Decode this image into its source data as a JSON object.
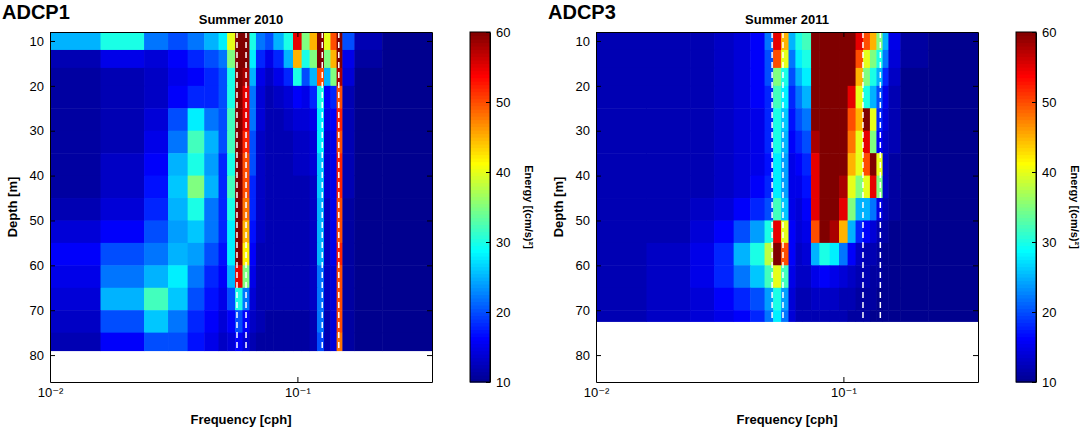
{
  "chart_data": [
    {
      "type": "heatmap",
      "panel": "ADCP1",
      "title": "Summer 2010",
      "x_label": "Frequency [cph]",
      "y_label": "Depth [m]",
      "log": "x",
      "xlim": [
        0.01,
        0.35
      ],
      "xticks": [
        {
          "value": 0.01,
          "label": "10⁻²"
        },
        {
          "value": 0.1,
          "label": "10⁻¹"
        }
      ],
      "ylim": [
        8,
        86
      ],
      "yticks": [
        10,
        20,
        30,
        40,
        50,
        60,
        70,
        80
      ],
      "x_edges": [
        0.01,
        0.016,
        0.024,
        0.03,
        0.036,
        0.042,
        0.048,
        0.052,
        0.056,
        0.06,
        0.064,
        0.068,
        0.074,
        0.08,
        0.088,
        0.096,
        0.104,
        0.112,
        0.12,
        0.128,
        0.136,
        0.144,
        0.152,
        0.17,
        0.22,
        0.35
      ],
      "y_edges": [
        8,
        12,
        16,
        20,
        25,
        30,
        35,
        40,
        45,
        50,
        55,
        60,
        65,
        70,
        75,
        79
      ],
      "z": [
        [
          25,
          30,
          22,
          20,
          22,
          25,
          28,
          40,
          60,
          60,
          30,
          22,
          20,
          25,
          30,
          55,
          35,
          45,
          60,
          40,
          50,
          60,
          20,
          12,
          10
        ],
        [
          12,
          15,
          14,
          16,
          18,
          20,
          22,
          35,
          60,
          60,
          28,
          18,
          15,
          18,
          25,
          45,
          30,
          35,
          60,
          35,
          45,
          60,
          15,
          11,
          10
        ],
        [
          11,
          12,
          13,
          15,
          16,
          18,
          20,
          30,
          60,
          58,
          25,
          15,
          13,
          15,
          18,
          30,
          20,
          25,
          50,
          25,
          35,
          58,
          14,
          10,
          10
        ],
        [
          11,
          12,
          13,
          16,
          18,
          18,
          20,
          30,
          60,
          55,
          22,
          14,
          12,
          13,
          14,
          16,
          15,
          18,
          30,
          16,
          18,
          50,
          12,
          10,
          10
        ],
        [
          11,
          12,
          14,
          20,
          28,
          22,
          20,
          32,
          60,
          55,
          22,
          14,
          12,
          12,
          13,
          14,
          14,
          15,
          28,
          15,
          16,
          52,
          12,
          10,
          10
        ],
        [
          11,
          12,
          15,
          22,
          32,
          25,
          20,
          32,
          60,
          52,
          20,
          13,
          12,
          12,
          12,
          13,
          13,
          14,
          28,
          14,
          15,
          50,
          12,
          10,
          10
        ],
        [
          11,
          13,
          16,
          25,
          30,
          24,
          18,
          30,
          60,
          50,
          20,
          13,
          12,
          12,
          12,
          13,
          13,
          14,
          26,
          14,
          15,
          52,
          12,
          10,
          10
        ],
        [
          11,
          13,
          17,
          26,
          35,
          25,
          18,
          32,
          60,
          50,
          18,
          13,
          12,
          12,
          12,
          12,
          12,
          13,
          26,
          14,
          15,
          52,
          12,
          10,
          10
        ],
        [
          12,
          14,
          18,
          25,
          30,
          22,
          18,
          30,
          60,
          48,
          18,
          13,
          12,
          12,
          12,
          12,
          12,
          13,
          25,
          13,
          15,
          50,
          11,
          10,
          10
        ],
        [
          14,
          16,
          20,
          24,
          26,
          22,
          18,
          28,
          60,
          45,
          17,
          13,
          12,
          12,
          12,
          12,
          12,
          13,
          25,
          13,
          15,
          50,
          11,
          10,
          10
        ],
        [
          16,
          20,
          22,
          25,
          24,
          20,
          17,
          28,
          60,
          42,
          16,
          12,
          12,
          12,
          12,
          12,
          12,
          13,
          25,
          13,
          15,
          52,
          11,
          10,
          10
        ],
        [
          15,
          22,
          25,
          28,
          22,
          18,
          16,
          25,
          55,
          35,
          15,
          12,
          12,
          12,
          12,
          12,
          12,
          13,
          22,
          13,
          14,
          50,
          11,
          10,
          10
        ],
        [
          14,
          25,
          32,
          26,
          20,
          17,
          15,
          20,
          30,
          22,
          14,
          12,
          12,
          12,
          12,
          12,
          12,
          13,
          22,
          13,
          14,
          50,
          11,
          10,
          10
        ],
        [
          13,
          20,
          26,
          22,
          18,
          16,
          14,
          16,
          20,
          16,
          13,
          12,
          11,
          11,
          11,
          11,
          11,
          12,
          22,
          12,
          14,
          50,
          11,
          10,
          10
        ],
        [
          12,
          16,
          20,
          20,
          17,
          15,
          13,
          14,
          16,
          14,
          12,
          11,
          11,
          11,
          11,
          11,
          11,
          12,
          20,
          12,
          14,
          48,
          11,
          10,
          10
        ]
      ],
      "vlines": [
        0.057,
        0.062,
        0.126,
        0.147
      ],
      "colorbar": {
        "label": "Energy [(cm/s)²]",
        "range": [
          10,
          60
        ],
        "ticks": [
          10,
          20,
          30,
          40,
          50,
          60
        ]
      }
    },
    {
      "type": "heatmap",
      "panel": "ADCP3",
      "title": "Summer 2011",
      "x_label": "Frequency [cph]",
      "y_label": "Depth [m]",
      "log": "x",
      "xlim": [
        0.01,
        0.35
      ],
      "xticks": [
        {
          "value": 0.01,
          "label": "10⁻²"
        },
        {
          "value": 0.1,
          "label": "10⁻¹"
        }
      ],
      "ylim": [
        8,
        86
      ],
      "yticks": [
        10,
        20,
        30,
        40,
        50,
        60,
        70,
        80
      ],
      "x_edges": [
        0.01,
        0.016,
        0.024,
        0.03,
        0.036,
        0.042,
        0.048,
        0.052,
        0.056,
        0.06,
        0.064,
        0.068,
        0.074,
        0.08,
        0.088,
        0.096,
        0.104,
        0.112,
        0.12,
        0.128,
        0.136,
        0.144,
        0.152,
        0.17,
        0.22,
        0.35
      ],
      "y_edges": [
        8,
        12,
        16,
        20,
        25,
        30,
        35,
        40,
        45,
        50,
        55,
        60,
        65,
        70,
        72.5
      ],
      "z": [
        [
          12,
          12,
          12,
          13,
          14,
          16,
          22,
          55,
          45,
          25,
          30,
          32,
          60,
          60,
          60,
          60,
          60,
          55,
          50,
          45,
          35,
          25,
          15,
          11,
          10
        ],
        [
          12,
          12,
          12,
          13,
          14,
          16,
          20,
          50,
          40,
          22,
          28,
          30,
          60,
          60,
          60,
          60,
          60,
          50,
          40,
          35,
          30,
          22,
          14,
          11,
          10
        ],
        [
          12,
          12,
          12,
          13,
          14,
          16,
          20,
          35,
          30,
          20,
          25,
          28,
          60,
          60,
          60,
          60,
          60,
          45,
          35,
          30,
          25,
          18,
          13,
          10,
          10
        ],
        [
          12,
          12,
          12,
          13,
          14,
          16,
          18,
          32,
          28,
          18,
          22,
          25,
          60,
          60,
          60,
          60,
          55,
          40,
          30,
          25,
          20,
          15,
          12,
          10,
          10
        ],
        [
          12,
          12,
          12,
          13,
          14,
          15,
          18,
          30,
          26,
          17,
          20,
          22,
          60,
          60,
          60,
          60,
          50,
          45,
          60,
          40,
          18,
          14,
          12,
          10,
          10
        ],
        [
          12,
          12,
          12,
          13,
          14,
          15,
          18,
          30,
          25,
          16,
          18,
          20,
          58,
          60,
          60,
          60,
          48,
          40,
          55,
          35,
          16,
          13,
          12,
          10,
          10
        ],
        [
          12,
          12,
          12,
          13,
          14,
          15,
          17,
          28,
          24,
          15,
          16,
          18,
          55,
          60,
          60,
          60,
          45,
          40,
          50,
          60,
          40,
          13,
          11,
          10,
          10
        ],
        [
          12,
          12,
          12,
          13,
          14,
          16,
          18,
          28,
          24,
          15,
          15,
          17,
          55,
          60,
          60,
          58,
          40,
          35,
          40,
          55,
          35,
          13,
          11,
          10,
          10
        ],
        [
          12,
          12,
          13,
          14,
          16,
          18,
          20,
          32,
          26,
          15,
          14,
          16,
          55,
          60,
          60,
          55,
          35,
          25,
          25,
          22,
          15,
          12,
          11,
          10,
          10
        ],
        [
          12,
          12,
          14,
          16,
          20,
          24,
          30,
          55,
          40,
          16,
          14,
          15,
          50,
          60,
          58,
          45,
          25,
          18,
          16,
          14,
          12,
          11,
          10,
          10,
          10
        ],
        [
          12,
          13,
          15,
          18,
          25,
          30,
          38,
          60,
          50,
          16,
          13,
          14,
          25,
          30,
          28,
          22,
          16,
          13,
          12,
          12,
          11,
          10,
          10,
          10,
          10
        ],
        [
          12,
          13,
          15,
          18,
          22,
          26,
          32,
          40,
          32,
          15,
          13,
          13,
          15,
          16,
          15,
          14,
          13,
          12,
          12,
          11,
          11,
          10,
          10,
          10,
          10
        ],
        [
          12,
          13,
          14,
          16,
          18,
          20,
          24,
          30,
          24,
          14,
          12,
          12,
          13,
          13,
          13,
          12,
          12,
          11,
          11,
          11,
          10,
          10,
          10,
          10,
          10
        ],
        [
          12,
          13,
          14,
          15,
          16,
          18,
          22,
          28,
          22,
          14,
          12,
          12,
          12,
          12,
          12,
          12,
          11,
          11,
          11,
          10,
          10,
          10,
          10,
          10,
          10
        ]
      ],
      "vlines": [
        0.0515,
        0.057,
        0.12,
        0.141
      ],
      "colorbar": {
        "label": "Energy [(cm/s)²]",
        "range": [
          10,
          60
        ],
        "ticks": [
          10,
          20,
          30,
          40,
          50,
          60
        ]
      }
    }
  ]
}
